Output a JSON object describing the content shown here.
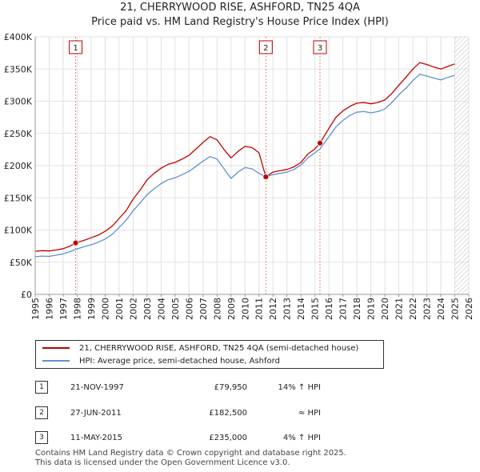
{
  "title": {
    "line1": "21, CHERRYWOOD RISE, ASHFORD, TN25 4QA",
    "line2": "Price paid vs. HM Land Registry's House Price Index (HPI)"
  },
  "chart_data": {
    "type": "line",
    "title": "21, CHERRYWOOD RISE, ASHFORD, TN25 4QA",
    "subtitle": "Price paid vs. HM Land Registry's House Price Index (HPI)",
    "xlabel": "",
    "ylabel": "",
    "xlim": [
      1995,
      2026
    ],
    "ylim": [
      0,
      400000
    ],
    "y_ticks": [
      {
        "value": 0,
        "label": "£0"
      },
      {
        "value": 50000,
        "label": "£50K"
      },
      {
        "value": 100000,
        "label": "£100K"
      },
      {
        "value": 150000,
        "label": "£150K"
      },
      {
        "value": 200000,
        "label": "£200K"
      },
      {
        "value": 250000,
        "label": "£250K"
      },
      {
        "value": 300000,
        "label": "£300K"
      },
      {
        "value": 350000,
        "label": "£350K"
      },
      {
        "value": 400000,
        "label": "£400K"
      }
    ],
    "x_ticks": [
      "1995",
      "1996",
      "1997",
      "1998",
      "1999",
      "2000",
      "2001",
      "2002",
      "2003",
      "2004",
      "2005",
      "2006",
      "2007",
      "2008",
      "2009",
      "2010",
      "2011",
      "2012",
      "2013",
      "2014",
      "2015",
      "2016",
      "2017",
      "2018",
      "2019",
      "2020",
      "2021",
      "2022",
      "2023",
      "2024",
      "2025",
      "2026"
    ],
    "grid": true,
    "future_hatch_from": 2025.0,
    "series": [
      {
        "name": "21, CHERRYWOOD RISE, ASHFORD, TN25 4QA (semi-detached house)",
        "color": "#c00000",
        "points": [
          [
            1995.0,
            67000
          ],
          [
            1995.5,
            68000
          ],
          [
            1996.0,
            67500
          ],
          [
            1996.5,
            69000
          ],
          [
            1997.0,
            71000
          ],
          [
            1997.5,
            75000
          ],
          [
            1997.9,
            79950
          ],
          [
            1998.5,
            84000
          ],
          [
            1999.0,
            88000
          ],
          [
            1999.5,
            92000
          ],
          [
            2000.0,
            98000
          ],
          [
            2000.5,
            106000
          ],
          [
            2001.0,
            118000
          ],
          [
            2001.5,
            130000
          ],
          [
            2002.0,
            148000
          ],
          [
            2002.5,
            162000
          ],
          [
            2003.0,
            178000
          ],
          [
            2003.5,
            188000
          ],
          [
            2004.0,
            196000
          ],
          [
            2004.5,
            202000
          ],
          [
            2005.0,
            205000
          ],
          [
            2005.5,
            210000
          ],
          [
            2006.0,
            216000
          ],
          [
            2006.5,
            226000
          ],
          [
            2007.0,
            236000
          ],
          [
            2007.5,
            245000
          ],
          [
            2008.0,
            240000
          ],
          [
            2008.5,
            225000
          ],
          [
            2009.0,
            212000
          ],
          [
            2009.5,
            222000
          ],
          [
            2010.0,
            230000
          ],
          [
            2010.5,
            228000
          ],
          [
            2011.0,
            220000
          ],
          [
            2011.49,
            182500
          ],
          [
            2012.0,
            190000
          ],
          [
            2012.5,
            192000
          ],
          [
            2013.0,
            194000
          ],
          [
            2013.5,
            198000
          ],
          [
            2014.0,
            205000
          ],
          [
            2014.5,
            218000
          ],
          [
            2015.0,
            226000
          ],
          [
            2015.36,
            235000
          ],
          [
            2016.0,
            258000
          ],
          [
            2016.5,
            275000
          ],
          [
            2017.0,
            285000
          ],
          [
            2017.5,
            292000
          ],
          [
            2018.0,
            297000
          ],
          [
            2018.5,
            298000
          ],
          [
            2019.0,
            296000
          ],
          [
            2019.5,
            298000
          ],
          [
            2020.0,
            302000
          ],
          [
            2020.5,
            312000
          ],
          [
            2021.0,
            325000
          ],
          [
            2021.5,
            337000
          ],
          [
            2022.0,
            350000
          ],
          [
            2022.5,
            360000
          ],
          [
            2023.0,
            357000
          ],
          [
            2023.5,
            353000
          ],
          [
            2024.0,
            350000
          ],
          [
            2024.5,
            354000
          ],
          [
            2025.0,
            358000
          ]
        ]
      },
      {
        "name": "HPI: Average price, semi-detached house, Ashford",
        "color": "#6090d0",
        "points": [
          [
            1995.0,
            58500
          ],
          [
            1995.5,
            59500
          ],
          [
            1996.0,
            59000
          ],
          [
            1996.5,
            61000
          ],
          [
            1997.0,
            63000
          ],
          [
            1997.5,
            66500
          ],
          [
            1997.9,
            70000
          ],
          [
            1998.5,
            74000
          ],
          [
            1999.0,
            77000
          ],
          [
            1999.5,
            81000
          ],
          [
            2000.0,
            86000
          ],
          [
            2000.5,
            93000
          ],
          [
            2001.0,
            104000
          ],
          [
            2001.5,
            115000
          ],
          [
            2002.0,
            130000
          ],
          [
            2002.5,
            142000
          ],
          [
            2003.0,
            155000
          ],
          [
            2003.5,
            164000
          ],
          [
            2004.0,
            172000
          ],
          [
            2004.5,
            178000
          ],
          [
            2005.0,
            181000
          ],
          [
            2005.5,
            186000
          ],
          [
            2006.0,
            191000
          ],
          [
            2006.5,
            199000
          ],
          [
            2007.0,
            207000
          ],
          [
            2007.5,
            214000
          ],
          [
            2008.0,
            210000
          ],
          [
            2008.5,
            195000
          ],
          [
            2009.0,
            180000
          ],
          [
            2009.5,
            190000
          ],
          [
            2010.0,
            197000
          ],
          [
            2010.5,
            195000
          ],
          [
            2011.0,
            188000
          ],
          [
            2011.49,
            182500
          ],
          [
            2012.0,
            186000
          ],
          [
            2012.5,
            188000
          ],
          [
            2013.0,
            190000
          ],
          [
            2013.5,
            194000
          ],
          [
            2014.0,
            201000
          ],
          [
            2014.5,
            212000
          ],
          [
            2015.0,
            220000
          ],
          [
            2015.36,
            226000
          ],
          [
            2016.0,
            245000
          ],
          [
            2016.5,
            260000
          ],
          [
            2017.0,
            270000
          ],
          [
            2017.5,
            278000
          ],
          [
            2018.0,
            283000
          ],
          [
            2018.5,
            284000
          ],
          [
            2019.0,
            282000
          ],
          [
            2019.5,
            284000
          ],
          [
            2020.0,
            288000
          ],
          [
            2020.5,
            298000
          ],
          [
            2021.0,
            310000
          ],
          [
            2021.5,
            320000
          ],
          [
            2022.0,
            332000
          ],
          [
            2022.5,
            342000
          ],
          [
            2023.0,
            339000
          ],
          [
            2023.5,
            336000
          ],
          [
            2024.0,
            333000
          ],
          [
            2024.5,
            337000
          ],
          [
            2025.0,
            340000
          ]
        ]
      }
    ],
    "sale_markers": [
      {
        "label": "1",
        "x": 1997.89,
        "price": 79950
      },
      {
        "label": "2",
        "x": 2011.49,
        "price": 182500
      },
      {
        "label": "3",
        "x": 2015.36,
        "price": 235000
      }
    ]
  },
  "legend": {
    "property_label": "21, CHERRYWOOD RISE, ASHFORD, TN25 4QA (semi-detached house)",
    "property_color": "#c00000",
    "hpi_label": "HPI: Average price, semi-detached house, Ashford",
    "hpi_color": "#6090d0"
  },
  "transactions": [
    {
      "num": "1",
      "date": "21-NOV-1997",
      "price": "£79,950",
      "hpi": "14% ↑ HPI"
    },
    {
      "num": "2",
      "date": "27-JUN-2011",
      "price": "£182,500",
      "hpi": "≈ HPI"
    },
    {
      "num": "3",
      "date": "11-MAY-2015",
      "price": "£235,000",
      "hpi": "4% ↑ HPI"
    }
  ],
  "footer": {
    "line1": "Contains HM Land Registry data © Crown copyright and database right 2025.",
    "line2": "This data is licensed under the Open Government Licence v3.0."
  }
}
